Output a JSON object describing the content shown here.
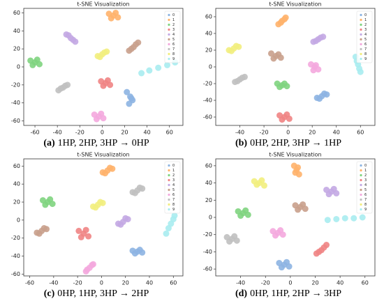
{
  "chart_data": [
    {
      "type": "scatter",
      "title": "t-SNE Visualization",
      "caption_label": "(a)",
      "caption": "1HP, 2HP, 3HP → 0HP",
      "xlim": [
        -70,
        72
      ],
      "xticks": [
        -60,
        -40,
        -20,
        0,
        20,
        40,
        60
      ],
      "ylim": [
        -65,
        65
      ],
      "yticks": [
        -60,
        -40,
        -20,
        0,
        20,
        40,
        60
      ],
      "legend": "upper right",
      "series": [
        {
          "name": "0",
          "color": "#8db4e2",
          "x": [
            22,
            25,
            27,
            24,
            26
          ],
          "y": [
            -28,
            -33,
            -37,
            -41,
            -35
          ]
        },
        {
          "name": "1",
          "color": "#ffb36b",
          "x": [
            10,
            6,
            14,
            8,
            12
          ],
          "y": [
            57,
            59,
            55,
            54,
            60
          ]
        },
        {
          "name": "2",
          "color": "#7fd47f",
          "x": [
            -60,
            -64,
            -56,
            -62,
            -58
          ],
          "y": [
            5,
            7,
            3,
            2,
            8
          ]
        },
        {
          "name": "3",
          "color": "#f08484",
          "x": [
            3,
            -1,
            7,
            1,
            5
          ],
          "y": [
            -18,
            -16,
            -20,
            -21,
            -15
          ]
        },
        {
          "name": "4",
          "color": "#c3a9e3",
          "x": [
            -28,
            -32,
            -24,
            -30,
            -26
          ],
          "y": [
            32,
            36,
            28,
            35,
            30
          ]
        },
        {
          "name": "5",
          "color": "#c9a08c",
          "x": [
            28,
            24,
            32,
            26,
            30
          ],
          "y": [
            22,
            18,
            27,
            20,
            25
          ]
        },
        {
          "name": "6",
          "color": "#f4a9de",
          "x": [
            -3,
            -7,
            1,
            -5,
            -1
          ],
          "y": [
            -55,
            -53,
            -57,
            -58,
            -52
          ]
        },
        {
          "name": "7",
          "color": "#c0c0c0",
          "x": [
            -35,
            -39,
            -31,
            -37,
            -33
          ],
          "y": [
            -23,
            -26,
            -20,
            -24,
            -21
          ]
        },
        {
          "name": "8",
          "color": "#f2ee7e",
          "x": [
            0,
            -4,
            4,
            -2,
            2
          ],
          "y": [
            14,
            12,
            17,
            11,
            16
          ]
        },
        {
          "name": "9",
          "color": "#a9ecef",
          "x": [
            35,
            42,
            50,
            58,
            65
          ],
          "y": [
            -7,
            -4,
            -1,
            2,
            5
          ]
        }
      ]
    },
    {
      "type": "scatter",
      "title": "t-SNE Visualization",
      "caption_label": "(b)",
      "caption": "0HP, 2HP, 3HP → 1HP",
      "xlim": [
        -60,
        72
      ],
      "xticks": [
        -40,
        -20,
        0,
        20,
        40,
        60
      ],
      "ylim": [
        -70,
        70
      ],
      "yticks": [
        -60,
        -40,
        -20,
        0,
        20,
        40,
        60
      ],
      "legend": "upper right",
      "series": [
        {
          "name": "0",
          "color": "#8db4e2",
          "x": [
            28,
            24,
            32,
            26,
            30
          ],
          "y": [
            -35,
            -37,
            -33,
            -38,
            -32
          ]
        },
        {
          "name": "1",
          "color": "#ffb36b",
          "x": [
            -5,
            -8,
            -2,
            -6,
            -3
          ],
          "y": [
            55,
            51,
            59,
            53,
            57
          ]
        },
        {
          "name": "2",
          "color": "#7fd47f",
          "x": [
            -5,
            -9,
            -1,
            -7,
            -3
          ],
          "y": [
            -22,
            -20,
            -23,
            -24,
            -20
          ]
        },
        {
          "name": "3",
          "color": "#f08484",
          "x": [
            -3,
            -7,
            1,
            -5,
            -1
          ],
          "y": [
            -60,
            -58,
            -62,
            -63,
            -57
          ]
        },
        {
          "name": "4",
          "color": "#c3a9e3",
          "x": [
            25,
            21,
            29,
            23,
            27
          ],
          "y": [
            33,
            30,
            36,
            31,
            35
          ]
        },
        {
          "name": "5",
          "color": "#c9a08c",
          "x": [
            -10,
            -14,
            -6,
            -12,
            -8
          ],
          "y": [
            13,
            16,
            11,
            10,
            15
          ]
        },
        {
          "name": "6",
          "color": "#f4a9de",
          "x": [
            22,
            19,
            25,
            21,
            23
          ],
          "y": [
            0,
            3,
            -3,
            -4,
            2
          ]
        },
        {
          "name": "7",
          "color": "#c0c0c0",
          "x": [
            -40,
            -44,
            -36,
            -42,
            -38
          ],
          "y": [
            -15,
            -18,
            -12,
            -17,
            -13
          ]
        },
        {
          "name": "8",
          "color": "#f2ee7e",
          "x": [
            -45,
            -49,
            -41,
            -47,
            -43
          ],
          "y": [
            22,
            20,
            24,
            19,
            25
          ]
        },
        {
          "name": "9",
          "color": "#a9ecef",
          "x": [
            56,
            57,
            58,
            59,
            60
          ],
          "y": [
            12,
            7,
            3,
            -2,
            -6
          ]
        }
      ]
    },
    {
      "type": "scatter",
      "title": "t-SNE Visualization",
      "caption_label": "(c)",
      "caption": "0HP, 1HP, 3HP → 2HP",
      "xlim": [
        -65,
        68
      ],
      "xticks": [
        -60,
        -40,
        -20,
        0,
        20,
        40,
        60
      ],
      "ylim": [
        -62,
        68
      ],
      "yticks": [
        -60,
        -40,
        -20,
        0,
        20,
        40,
        60
      ],
      "legend": "upper right",
      "series": [
        {
          "name": "0",
          "color": "#8db4e2",
          "x": [
            30,
            26,
            34,
            28,
            32
          ],
          "y": [
            -35,
            -34,
            -36,
            -37,
            -33
          ]
        },
        {
          "name": "1",
          "color": "#ffb36b",
          "x": [
            5,
            1,
            9,
            3,
            7
          ],
          "y": [
            55,
            53,
            57,
            52,
            58
          ]
        },
        {
          "name": "2",
          "color": "#7fd47f",
          "x": [
            -45,
            -49,
            -41,
            -47,
            -43
          ],
          "y": [
            20,
            22,
            18,
            17,
            23
          ]
        },
        {
          "name": "3",
          "color": "#f08484",
          "x": [
            -15,
            -19,
            -11,
            -17,
            -13
          ],
          "y": [
            -15,
            -12,
            -18,
            -19,
            -11
          ]
        },
        {
          "name": "4",
          "color": "#c3a9e3",
          "x": [
            18,
            14,
            22,
            16,
            20
          ],
          "y": [
            -2,
            -4,
            1,
            -5,
            2
          ]
        },
        {
          "name": "5",
          "color": "#c9a08c",
          "x": [
            -50,
            -54,
            -46,
            -52,
            -48
          ],
          "y": [
            -12,
            -14,
            -10,
            -15,
            -9
          ]
        },
        {
          "name": "6",
          "color": "#f4a9de",
          "x": [
            -10,
            -13,
            -7,
            -12,
            -8
          ],
          "y": [
            -53,
            -57,
            -49,
            -55,
            -50
          ]
        },
        {
          "name": "7",
          "color": "#c0c0c0",
          "x": [
            30,
            26,
            34,
            28,
            32
          ],
          "y": [
            33,
            31,
            35,
            30,
            36
          ]
        },
        {
          "name": "8",
          "color": "#f2ee7e",
          "x": [
            -3,
            -7,
            1,
            -5,
            -1
          ],
          "y": [
            17,
            15,
            19,
            14,
            20
          ]
        },
        {
          "name": "9",
          "color": "#a9ecef",
          "x": [
            54,
            56,
            58,
            60,
            61
          ],
          "y": [
            -15,
            -9,
            -4,
            1,
            5
          ]
        }
      ]
    },
    {
      "type": "scatter",
      "title": "t-SNE Visualization",
      "caption_label": "(d)",
      "caption": "0HP, 1HP, 2HP → 3HP",
      "xlim": [
        -60,
        68
      ],
      "xticks": [
        -40,
        -20,
        0,
        20,
        40,
        60
      ],
      "ylim": [
        -68,
        68
      ],
      "yticks": [
        -60,
        -40,
        -20,
        0,
        20,
        40,
        60
      ],
      "legend": "upper right",
      "series": [
        {
          "name": "0",
          "color": "#8db4e2",
          "x": [
            -5,
            -9,
            -1,
            -7,
            -3
          ],
          "y": [
            -55,
            -53,
            -57,
            -58,
            -52
          ]
        },
        {
          "name": "1",
          "color": "#ffb36b",
          "x": [
            5,
            3,
            7,
            4,
            6
          ],
          "y": [
            55,
            60,
            50,
            52,
            58
          ]
        },
        {
          "name": "2",
          "color": "#7fd47f",
          "x": [
            -38,
            -42,
            -34,
            -40,
            -36
          ],
          "y": [
            5,
            7,
            3,
            2,
            8
          ]
        },
        {
          "name": "3",
          "color": "#f08484",
          "x": [
            25,
            21,
            29,
            23,
            27
          ],
          "y": [
            -38,
            -42,
            -32,
            -40,
            -35
          ]
        },
        {
          "name": "4",
          "color": "#c3a9e3",
          "x": [
            33,
            29,
            37,
            31,
            35
          ],
          "y": [
            30,
            32,
            28,
            27,
            33
          ]
        },
        {
          "name": "5",
          "color": "#c9a08c",
          "x": [
            8,
            4,
            12,
            6,
            10
          ],
          "y": [
            12,
            14,
            10,
            9,
            15
          ]
        },
        {
          "name": "6",
          "color": "#f4a9de",
          "x": [
            -10,
            -14,
            -6,
            -12,
            -8
          ],
          "y": [
            -18,
            -16,
            -20,
            -21,
            -15
          ]
        },
        {
          "name": "7",
          "color": "#c0c0c0",
          "x": [
            -47,
            -51,
            -43,
            -49,
            -45
          ],
          "y": [
            -25,
            -23,
            -27,
            -28,
            -22
          ]
        },
        {
          "name": "8",
          "color": "#f2ee7e",
          "x": [
            -25,
            -29,
            -21,
            -27,
            -23
          ],
          "y": [
            40,
            42,
            37,
            38,
            43
          ]
        },
        {
          "name": "9",
          "color": "#a9ecef",
          "x": [
            30,
            37,
            44,
            51,
            58
          ],
          "y": [
            -3,
            -2,
            -1,
            -1,
            0
          ]
        }
      ]
    }
  ]
}
